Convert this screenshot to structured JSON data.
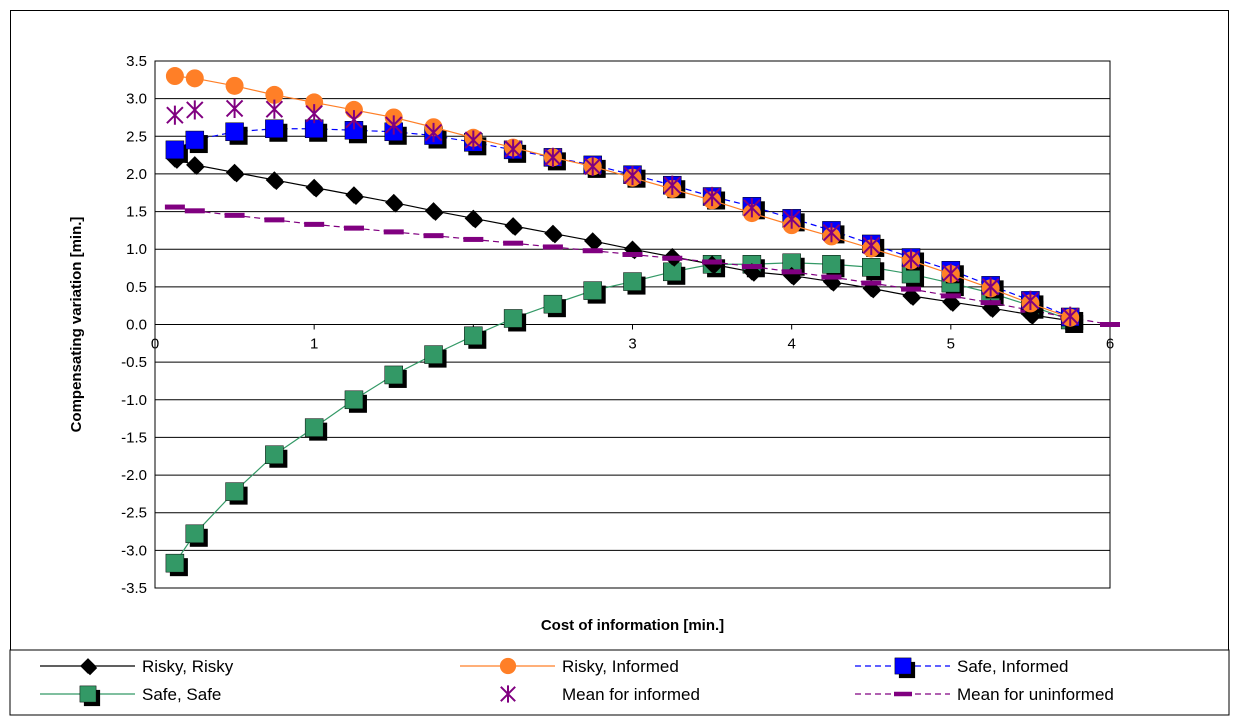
{
  "chart_data": {
    "type": "line",
    "title": "",
    "xlabel": "Cost of information [min.]",
    "ylabel": "Compensating variation [min.]",
    "xlim": [
      0,
      6
    ],
    "ylim": [
      -3.5,
      3.5
    ],
    "x_ticks": [
      "0",
      "1",
      "2",
      "3",
      "4",
      "5",
      "6"
    ],
    "y_ticks": [
      "3.5",
      "3.0",
      "2.5",
      "2.0",
      "1.5",
      "1.0",
      "0.5",
      "0.0",
      "-0.5",
      "-1.0",
      "-1.5",
      "-2.0",
      "-2.5",
      "-3.0",
      "-3.5"
    ],
    "x": [
      0.125,
      0.25,
      0.5,
      0.75,
      1.0,
      1.25,
      1.5,
      1.75,
      2.0,
      2.25,
      2.5,
      2.75,
      3.0,
      3.25,
      3.5,
      3.75,
      4.0,
      4.25,
      4.5,
      4.75,
      5.0,
      5.25,
      5.5,
      5.75,
      6.0
    ],
    "grid": "horizontal",
    "legend_position": "bottom",
    "series": [
      {
        "name": "Risky, Risky",
        "marker": "diamond",
        "line": "solid",
        "color": "#000000",
        "values": [
          2.2,
          2.12,
          2.02,
          1.92,
          1.82,
          1.72,
          1.62,
          1.51,
          1.41,
          1.31,
          1.21,
          1.11,
          1.0,
          0.9,
          0.8,
          0.7,
          0.65,
          0.57,
          0.48,
          0.38,
          0.3,
          0.22,
          0.13,
          0.05,
          null
        ]
      },
      {
        "name": "Risky, Informed",
        "marker": "circle",
        "line": "solid",
        "color": "#ff7f27",
        "values": [
          3.3,
          3.27,
          3.17,
          3.05,
          2.95,
          2.85,
          2.75,
          2.62,
          2.48,
          2.35,
          2.22,
          2.1,
          1.95,
          1.8,
          1.65,
          1.48,
          1.32,
          1.17,
          1.01,
          0.85,
          0.67,
          0.48,
          0.28,
          0.09,
          null
        ]
      },
      {
        "name": "Safe, Informed",
        "marker": "square",
        "line": "dashed",
        "color": "#0000ff",
        "values": [
          2.32,
          2.45,
          2.56,
          2.6,
          2.6,
          2.58,
          2.56,
          2.51,
          2.42,
          2.32,
          2.22,
          2.12,
          1.99,
          1.85,
          1.7,
          1.57,
          1.41,
          1.25,
          1.07,
          0.89,
          0.72,
          0.52,
          0.32,
          0.1,
          null
        ]
      },
      {
        "name": "Safe, Safe",
        "marker": "square",
        "line": "solid",
        "color": "#339966",
        "values": [
          -3.17,
          -2.78,
          -2.22,
          -1.73,
          -1.37,
          -1.0,
          -0.67,
          -0.4,
          -0.15,
          0.08,
          0.27,
          0.45,
          0.57,
          0.7,
          0.8,
          0.8,
          0.82,
          0.8,
          0.76,
          0.67,
          0.55,
          0.42,
          0.25,
          0.06,
          null
        ]
      },
      {
        "name": "Mean for informed",
        "marker": "asterisk",
        "line": "none",
        "color": "#800080",
        "values": [
          2.78,
          2.85,
          2.87,
          2.86,
          2.8,
          2.72,
          2.65,
          2.55,
          2.45,
          2.33,
          2.22,
          2.1,
          1.98,
          1.85,
          1.7,
          1.55,
          1.4,
          1.22,
          1.05,
          0.87,
          0.68,
          0.5,
          0.32,
          0.11,
          null
        ]
      },
      {
        "name": "Mean for uninformed",
        "marker": "dash",
        "line": "dashed",
        "color": "#800080",
        "values": [
          1.56,
          1.51,
          1.45,
          1.39,
          1.33,
          1.28,
          1.23,
          1.18,
          1.13,
          1.08,
          1.03,
          0.98,
          0.93,
          0.88,
          0.83,
          0.77,
          0.7,
          0.63,
          0.55,
          0.47,
          0.38,
          0.29,
          0.19,
          0.09,
          0.0
        ]
      }
    ]
  }
}
